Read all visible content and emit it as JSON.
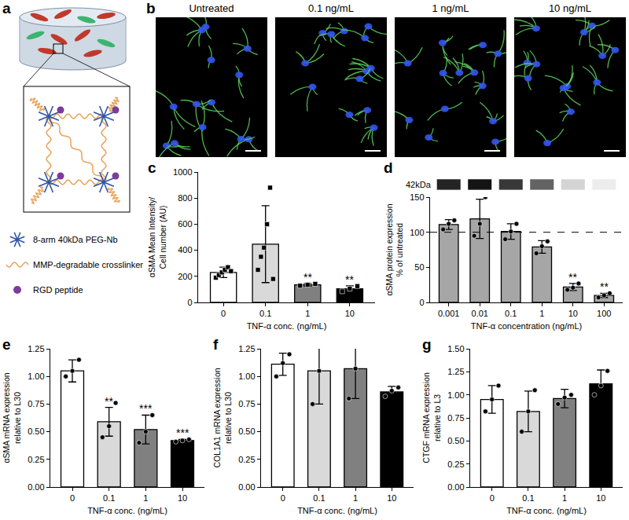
{
  "diagram": {
    "label": "a",
    "components": [
      {
        "label": "8-arm 40kDa PEG-Nb",
        "shape": "star"
      },
      {
        "label": "MMP-degradable crosslinker",
        "shape": "wave"
      },
      {
        "label": "RGD peptide",
        "shape": "dot"
      }
    ]
  },
  "images": {
    "label": "b",
    "titles": [
      "Untreated",
      "0.1 ng/mL",
      "1 ng/mL",
      "10 ng/mL"
    ]
  },
  "chart_data": [
    {
      "label": "c",
      "type": "bar",
      "categories": [
        "0",
        "0.1",
        "1",
        "10"
      ],
      "values": [
        230,
        447,
        135,
        105
      ],
      "errors": [
        40,
        295,
        10,
        22
      ],
      "points": [
        [
          190,
          210,
          230,
          250,
          270,
          240
        ],
        [
          250,
          350,
          420,
          600,
          880,
          180
        ],
        [
          128,
          135,
          142
        ],
        [
          85,
          105,
          125
        ]
      ],
      "significance": [
        null,
        null,
        "**",
        "**"
      ],
      "colors": [
        "#ffffff",
        "#d9d9d9",
        "#808080",
        "#000000"
      ],
      "marker": "square",
      "x_label": "TNF-α conc. (ng/mL)",
      "y_label": "αSMA Mean Intensity/\nCell number (AU)",
      "ylim": [
        0,
        1000
      ],
      "yticks": [
        0,
        200,
        400,
        600,
        800,
        1000
      ],
      "grid": false
    },
    {
      "label": "d",
      "type": "bar",
      "categories": [
        "0.001",
        "0.01",
        "0.1",
        "1",
        "10",
        "100"
      ],
      "values": [
        111,
        119,
        101,
        79,
        22,
        10
      ],
      "errors": [
        7,
        28,
        11,
        9,
        5,
        3
      ],
      "points": [
        [
          104,
          112,
          117
        ],
        [
          95,
          112,
          150
        ],
        [
          90,
          101,
          112
        ],
        [
          70,
          80,
          87
        ],
        [
          18,
          21,
          27
        ],
        [
          7,
          10,
          13
        ]
      ],
      "significance": [
        null,
        null,
        null,
        null,
        "**",
        "**"
      ],
      "color": "#a6a6a6",
      "marker": "circle",
      "reference_line": 100,
      "blot_label": "42kDa",
      "x_label": "TNF-α concentration (ng/mL)",
      "y_label": "αSMA protein expression\n% of untreated",
      "ylim": [
        0,
        150
      ],
      "yticks": [
        0,
        50,
        100,
        150
      ],
      "grid": false
    },
    {
      "label": "e",
      "type": "bar",
      "categories": [
        "0",
        "0.1",
        "1",
        "10"
      ],
      "values": [
        1.05,
        0.59,
        0.52,
        0.42
      ],
      "errors": [
        0.1,
        0.13,
        0.13,
        0.01
      ],
      "points": [
        [
          1.0,
          1.05,
          1.15
        ],
        [
          0.45,
          0.55,
          0.76
        ],
        [
          0.4,
          0.5,
          0.65
        ],
        [
          0.41,
          0.42,
          0.43
        ]
      ],
      "significance": [
        null,
        "**",
        "***",
        "***"
      ],
      "colors": [
        "#ffffff",
        "#d9d9d9",
        "#808080",
        "#000000"
      ],
      "marker": "circle",
      "x_label": "TNF-α conc. (ng/mL)",
      "y_label": "αSMA mRNA expression\nrelative to L30",
      "ylim": [
        0,
        1.25
      ],
      "yticks": [
        {
          "value": 0,
          "label": "0.00"
        },
        {
          "value": 0.25,
          "label": "0.25"
        },
        {
          "value": 0.5,
          "label": "0.50"
        },
        {
          "value": 0.75,
          "label": "0.75"
        },
        {
          "value": 1,
          "label": "1.00"
        },
        {
          "value": 1.25,
          "label": "1.25"
        }
      ],
      "grid": false
    },
    {
      "label": "f",
      "type": "bar",
      "categories": [
        "0",
        "0.1",
        "1",
        "10"
      ],
      "values": [
        1.11,
        1.05,
        1.07,
        0.86
      ],
      "errors": [
        0.1,
        0.3,
        0.27,
        0.05
      ],
      "points": [
        [
          1.0,
          1.12,
          1.2
        ],
        [
          0.75,
          1.05,
          1.35
        ],
        [
          0.8,
          1.07,
          1.32
        ],
        [
          0.82,
          0.87,
          0.9
        ]
      ],
      "significance": [
        null,
        null,
        null,
        null
      ],
      "colors": [
        "#ffffff",
        "#d9d9d9",
        "#808080",
        "#000000"
      ],
      "marker": "circle",
      "x_label": "TNF-α conc. (ng/mL)",
      "y_label": "COL1A1 mRNA expression\nrelative to L30",
      "ylim": [
        0,
        1.25
      ],
      "yticks": [
        {
          "value": 0,
          "label": "0.00"
        },
        {
          "value": 0.25,
          "label": "0.25"
        },
        {
          "value": 0.5,
          "label": "0.50"
        },
        {
          "value": 0.75,
          "label": "0.75"
        },
        {
          "value": 1,
          "label": "1.00"
        },
        {
          "value": 1.25,
          "label": "1.25"
        }
      ],
      "grid": false
    },
    {
      "label": "g",
      "type": "bar",
      "categories": [
        "0",
        "0.1",
        "1",
        "10"
      ],
      "values": [
        0.95,
        0.82,
        0.96,
        1.12
      ],
      "errors": [
        0.15,
        0.22,
        0.1,
        0.15
      ],
      "points": [
        [
          0.82,
          0.95,
          1.1
        ],
        [
          0.6,
          0.82,
          1.05
        ],
        [
          0.9,
          0.97,
          1.0
        ],
        [
          1.0,
          1.1,
          1.26
        ]
      ],
      "significance": [
        null,
        null,
        null,
        null
      ],
      "colors": [
        "#ffffff",
        "#d9d9d9",
        "#808080",
        "#000000"
      ],
      "marker": "circle",
      "x_label": "TNF-α conc. (ng/mL)",
      "y_label": "CTGF mRNA expression\nrelative to L3",
      "ylim": [
        0,
        1.5
      ],
      "yticks": [
        {
          "value": 0,
          "label": "0.00"
        },
        {
          "value": 0.25,
          "label": "0.25"
        },
        {
          "value": 0.5,
          "label": "0.50"
        },
        {
          "value": 0.75,
          "label": "0.75"
        },
        {
          "value": 1,
          "label": "1.00"
        },
        {
          "value": 1.25,
          "label": "1.25"
        },
        {
          "value": 1.5,
          "label": "1.50"
        }
      ],
      "grid": false
    }
  ]
}
